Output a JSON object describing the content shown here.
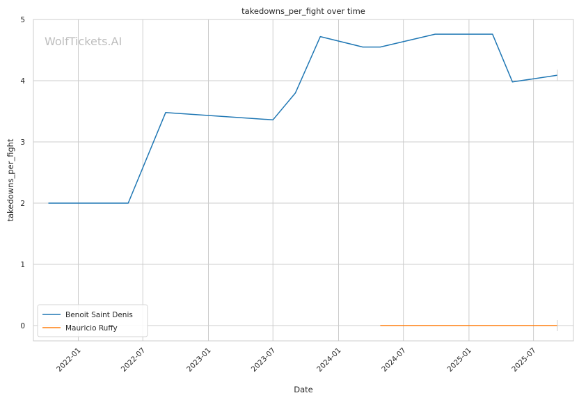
{
  "chart_data": {
    "type": "line",
    "title": "takedowns_per_fight over time",
    "xlabel": "Date",
    "ylabel": "takedowns_per_fight",
    "watermark": "WolfTickets.AI",
    "ylim": [
      -0.25,
      5
    ],
    "xlim": [
      "2021-08-28",
      "2025-10-21"
    ],
    "x_ticks": [
      "2022-01",
      "2022-07",
      "2023-01",
      "2023-07",
      "2024-01",
      "2024-07",
      "2025-01",
      "2025-07"
    ],
    "y_ticks": [
      0,
      1,
      2,
      3,
      4,
      5
    ],
    "grid": true,
    "legend_position": "lower-left",
    "series": [
      {
        "name": "Benoit Saint Denis",
        "color": "#1f77b4",
        "points": [
          {
            "x": "2021-10-09",
            "y": 2.0
          },
          {
            "x": "2022-05-21",
            "y": 2.0
          },
          {
            "x": "2022-09-03",
            "y": 3.48
          },
          {
            "x": "2023-07-01",
            "y": 3.36
          },
          {
            "x": "2023-09-02",
            "y": 3.8
          },
          {
            "x": "2023-11-11",
            "y": 4.72
          },
          {
            "x": "2024-03-09",
            "y": 4.55
          },
          {
            "x": "2024-04-27",
            "y": 4.55
          },
          {
            "x": "2024-09-28",
            "y": 4.76
          },
          {
            "x": "2025-03-08",
            "y": 4.76
          },
          {
            "x": "2025-05-03",
            "y": 3.98
          },
          {
            "x": "2025-09-06",
            "y": 4.09
          }
        ]
      },
      {
        "name": "Mauricio Ruffy",
        "color": "#ff7f0e",
        "points": [
          {
            "x": "2024-04-27",
            "y": 0.0
          },
          {
            "x": "2025-09-06",
            "y": 0.0
          }
        ]
      }
    ]
  }
}
